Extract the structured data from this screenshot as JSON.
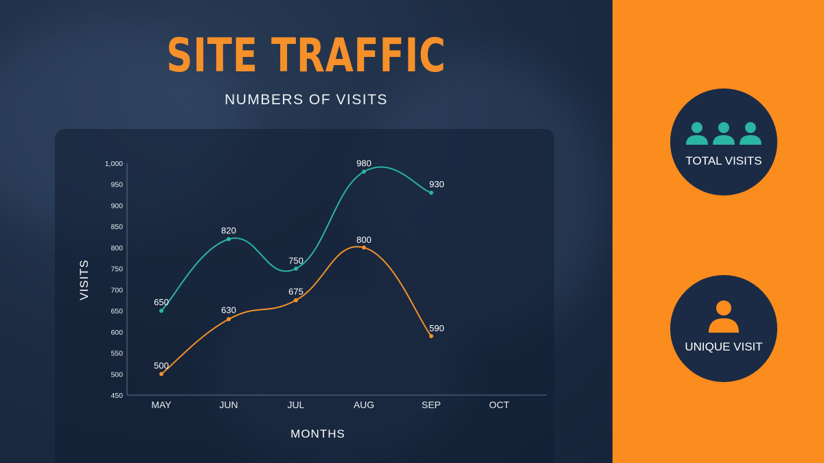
{
  "header": {
    "title": "SITE TRAFFIC",
    "subtitle": "NUMBERS OF VISITS"
  },
  "badges": {
    "total": {
      "label": "TOTAL VISITS",
      "icon": "group-people-icon",
      "color": "#2bb5a3"
    },
    "unique": {
      "label": "UNIQUE VISIT",
      "icon": "person-icon",
      "color": "#fb8c1e"
    }
  },
  "colors": {
    "accent_orange": "#fb8c1e",
    "series_teal": "#2bb5a3",
    "series_orange": "#f5922a",
    "panel_navy": "#1b2b45"
  },
  "chart_data": {
    "type": "line",
    "title": "SITE TRAFFIC",
    "subtitle": "NUMBERS OF VISITS",
    "xlabel": "MONTHS",
    "ylabel": "VISITS",
    "categories": [
      "MAY",
      "JUN",
      "JUL",
      "AUG",
      "SEP",
      "OCT"
    ],
    "ylim": [
      450,
      1000
    ],
    "yticks": [
      450,
      500,
      550,
      600,
      650,
      700,
      750,
      800,
      850,
      900,
      950,
      1000
    ],
    "ytick_labels": [
      "450",
      "500",
      "550",
      "600",
      "650",
      "700",
      "750",
      "800",
      "850",
      "900",
      "950",
      "1,000"
    ],
    "grid": false,
    "series": [
      {
        "color": "#2bb5a3",
        "values": [
          650,
          820,
          750,
          980,
          930,
          null
        ]
      },
      {
        "color": "#f5922a",
        "values": [
          500,
          630,
          675,
          800,
          590,
          null
        ]
      }
    ]
  }
}
